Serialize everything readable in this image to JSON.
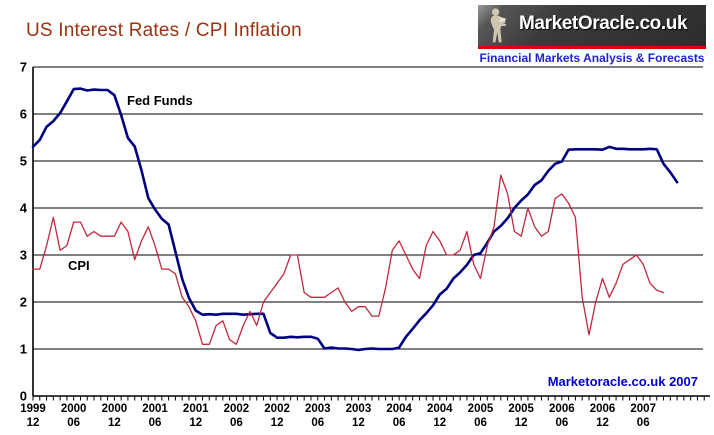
{
  "header": {
    "title": "US Interest Rates / CPI Inflation",
    "logo": {
      "brand": "MarketOracle.co.uk",
      "tagline": "Financial Markets Analysis & Forecasts",
      "statue_icon": "seated-reader-statue-icon",
      "colors": {
        "box_bg": "#3a3a3a",
        "brand_text": "#ffffff",
        "underline_bar": "#dd0000",
        "tagline_text": "#2222cc"
      }
    }
  },
  "chart": {
    "watermark": "Marketoracle.co.uk 2007",
    "series_labels": {
      "fed_funds": "Fed Funds",
      "cpi": "CPI"
    },
    "colors": {
      "title_text": "#993311",
      "watermark_text": "#0000cc",
      "grid": "#000000",
      "axis": "#000000"
    }
  },
  "chart_data": {
    "type": "line",
    "title": "US Interest Rates / CPI Inflation",
    "x_start": "1999-12",
    "x_interval": "monthly",
    "ylim": [
      0,
      7
    ],
    "y_ticks": [
      0,
      1,
      2,
      3,
      4,
      5,
      6,
      7
    ],
    "grid": "horizontal",
    "legend_position": "inline-labels",
    "x_tick_labels": [
      {
        "year": "1999",
        "month": "12"
      },
      {
        "year": "2000",
        "month": "06"
      },
      {
        "year": "2000",
        "month": "12"
      },
      {
        "year": "2001",
        "month": "06"
      },
      {
        "year": "2001",
        "month": "12"
      },
      {
        "year": "2002",
        "month": "06"
      },
      {
        "year": "2002",
        "month": "12"
      },
      {
        "year": "2003",
        "month": "06"
      },
      {
        "year": "2003",
        "month": "12"
      },
      {
        "year": "2004",
        "month": "06"
      },
      {
        "year": "2004",
        "month": "12"
      },
      {
        "year": "2005",
        "month": "06"
      },
      {
        "year": "2005",
        "month": "12"
      },
      {
        "year": "2006",
        "month": "06"
      },
      {
        "year": "2006",
        "month": "12"
      },
      {
        "year": "2007",
        "month": "06"
      }
    ],
    "series": [
      {
        "name": "Fed Funds",
        "color": "#000080",
        "line_width": 2.6,
        "values": [
          5.3,
          5.45,
          5.73,
          5.85,
          6.02,
          6.27,
          6.53,
          6.54,
          6.5,
          6.52,
          6.51,
          6.51,
          6.4,
          5.98,
          5.49,
          5.31,
          4.8,
          4.21,
          3.97,
          3.77,
          3.65,
          3.07,
          2.49,
          2.09,
          1.82,
          1.73,
          1.74,
          1.73,
          1.75,
          1.75,
          1.75,
          1.73,
          1.74,
          1.75,
          1.75,
          1.34,
          1.24,
          1.24,
          1.26,
          1.25,
          1.26,
          1.26,
          1.22,
          1.01,
          1.03,
          1.01,
          1.01,
          1.0,
          0.98,
          1.0,
          1.01,
          1.0,
          1.0,
          1.0,
          1.03,
          1.26,
          1.43,
          1.61,
          1.76,
          1.93,
          2.16,
          2.28,
          2.5,
          2.63,
          2.79,
          3.0,
          3.04,
          3.26,
          3.5,
          3.62,
          3.78,
          4.0,
          4.16,
          4.29,
          4.49,
          4.59,
          4.79,
          4.94,
          4.99,
          5.24,
          5.25,
          5.25,
          5.25,
          5.25,
          5.24,
          5.3,
          5.26,
          5.26,
          5.25,
          5.25,
          5.25,
          5.26,
          5.25,
          4.94,
          4.76,
          4.55
        ]
      },
      {
        "name": "CPI",
        "color": "#c2283c",
        "line_width": 1.3,
        "values": [
          2.7,
          2.7,
          3.2,
          3.8,
          3.1,
          3.2,
          3.7,
          3.7,
          3.4,
          3.5,
          3.4,
          3.4,
          3.4,
          3.7,
          3.5,
          2.9,
          3.3,
          3.6,
          3.2,
          2.7,
          2.7,
          2.6,
          2.1,
          1.9,
          1.6,
          1.1,
          1.1,
          1.5,
          1.6,
          1.2,
          1.1,
          1.5,
          1.8,
          1.5,
          2.0,
          2.2,
          2.4,
          2.6,
          3.0,
          3.0,
          2.2,
          2.1,
          2.1,
          2.1,
          2.2,
          2.3,
          2.0,
          1.8,
          1.9,
          1.9,
          1.7,
          1.7,
          2.3,
          3.1,
          3.3,
          3.0,
          2.7,
          2.5,
          3.2,
          3.5,
          3.3,
          3.0,
          3.0,
          3.1,
          3.5,
          2.8,
          2.5,
          3.2,
          3.6,
          4.7,
          4.3,
          3.5,
          3.4,
          4.0,
          3.6,
          3.4,
          3.5,
          4.2,
          4.3,
          4.1,
          3.8,
          2.1,
          1.3,
          2.0,
          2.5,
          2.1,
          2.4,
          2.8,
          2.9,
          3.0,
          2.8,
          2.4,
          2.25,
          2.2
        ]
      }
    ]
  }
}
